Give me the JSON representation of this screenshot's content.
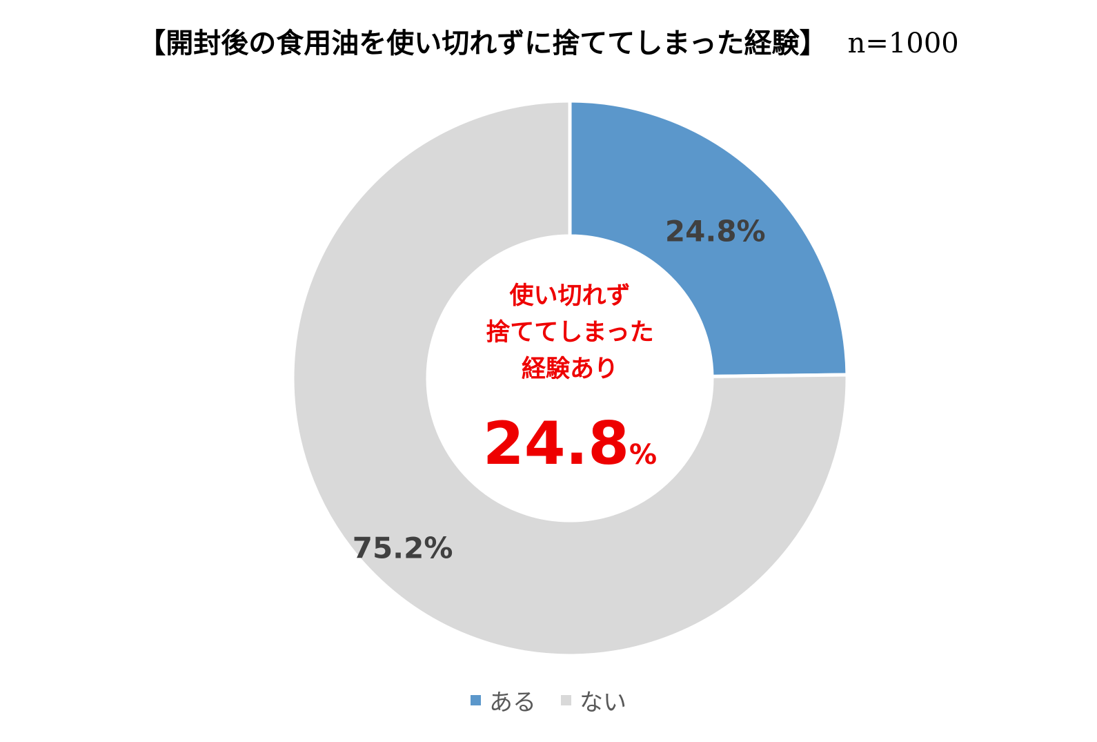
{
  "title": "【開封後の食用油を使い切れずに捨ててしまった経験】",
  "sample_size": "n=1000",
  "center_label": {
    "lines": [
      "使い切れず",
      "捨ててしまった",
      "経験あり"
    ],
    "value": "24.8",
    "unit": "%",
    "color": "#ee0000"
  },
  "chart_data": {
    "type": "pie",
    "subtype": "donut",
    "categories": [
      "ある",
      "ない"
    ],
    "values": [
      24.8,
      75.2
    ],
    "data_labels": [
      "24.8%",
      "75.2%"
    ],
    "colors": [
      "#5b97cb",
      "#d9d9d9"
    ],
    "legend": "bottom"
  }
}
